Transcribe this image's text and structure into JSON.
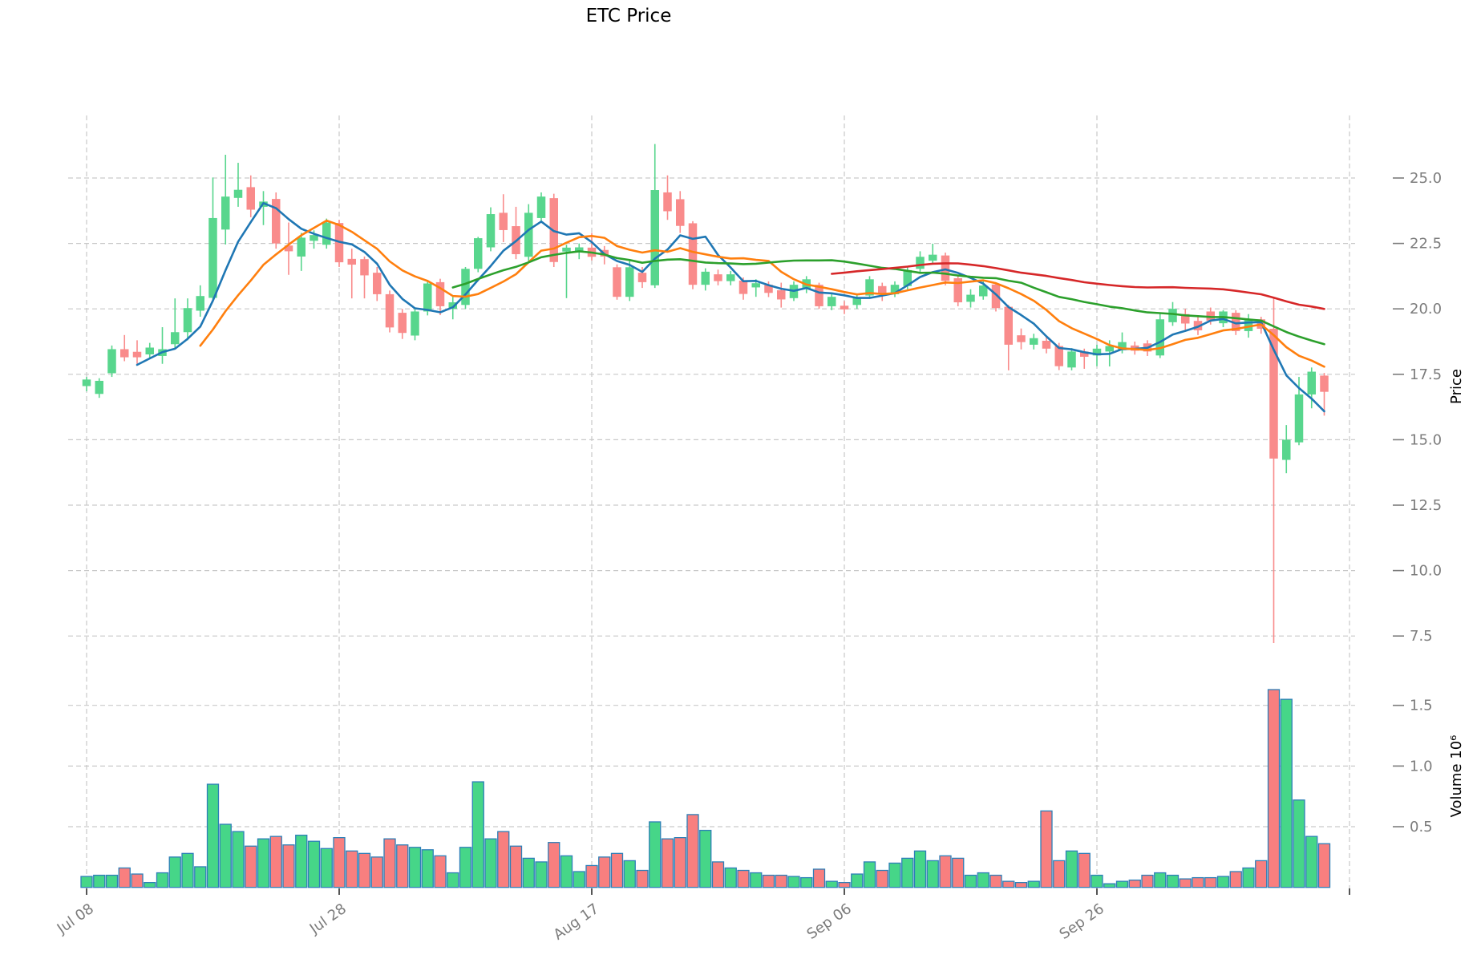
{
  "chart_data": {
    "type": "candlestick",
    "title": "ETC Price",
    "price_axis_label": "Price",
    "volume_axis_label": "Volume  10⁶",
    "legend_position": "none",
    "grid": true,
    "price_ylim": [
      6.9,
      27.4
    ],
    "volume_ylim": [
      0,
      1.85
    ],
    "price_ticks": [
      {
        "v": 25.0,
        "label": "25.0"
      },
      {
        "v": 22.5,
        "label": "22.5"
      },
      {
        "v": 20.0,
        "label": "20.0"
      },
      {
        "v": 17.5,
        "label": "17.5"
      },
      {
        "v": 15.0,
        "label": "15.0"
      },
      {
        "v": 12.5,
        "label": "12.5"
      },
      {
        "v": 10.0,
        "label": "10.0"
      },
      {
        "v": 7.5,
        "label": "7.5"
      }
    ],
    "volume_ticks": [
      {
        "v": 1.5,
        "label": "1.5"
      },
      {
        "v": 1.0,
        "label": "1.0"
      },
      {
        "v": 0.5,
        "label": "0.5"
      }
    ],
    "x_ticks": [
      {
        "index": 0,
        "label": "Jul 08"
      },
      {
        "index": 20,
        "label": "Jul 28"
      },
      {
        "index": 40,
        "label": "Aug 17"
      },
      {
        "index": 60,
        "label": "Sep 06"
      },
      {
        "index": 80,
        "label": "Sep 26"
      },
      {
        "index": 100,
        "label": ""
      }
    ],
    "moving_averages": [
      {
        "window": 5,
        "color": "#1f77b4"
      },
      {
        "window": 10,
        "color": "#ff7f0e"
      },
      {
        "window": 30,
        "color": "#2ca02c"
      },
      {
        "window": 60,
        "color": "#d62728"
      }
    ],
    "colors": {
      "up": "#58d68d",
      "down": "#f98b8b",
      "volume_up": "#46d688",
      "volume_down": "#f87f7f",
      "volume_border": "#2d7fb8",
      "grid": "#c9c9c9",
      "tick_text": "#7c7c7c",
      "axis_title_text": "#000000"
    },
    "candles": [
      {
        "date": "Jul 08",
        "o": 17.05,
        "h": 17.4,
        "l": 16.85,
        "c": 17.3,
        "v": 0.09
      },
      {
        "date": "Jul 09",
        "o": 16.75,
        "h": 17.35,
        "l": 16.6,
        "c": 17.25,
        "v": 0.1
      },
      {
        "date": "Jul 10",
        "o": 17.54,
        "h": 18.6,
        "l": 17.4,
        "c": 18.46,
        "v": 0.1
      },
      {
        "date": "Jul 11",
        "o": 18.46,
        "h": 19.0,
        "l": 18.0,
        "c": 18.15,
        "v": 0.16
      },
      {
        "date": "Jul 12",
        "o": 18.36,
        "h": 18.8,
        "l": 17.9,
        "c": 18.15,
        "v": 0.11
      },
      {
        "date": "Jul 13",
        "o": 18.26,
        "h": 18.7,
        "l": 18.1,
        "c": 18.52,
        "v": 0.04
      },
      {
        "date": "Jul 14",
        "o": 18.2,
        "h": 19.3,
        "l": 17.9,
        "c": 18.46,
        "v": 0.12
      },
      {
        "date": "Jul 15",
        "o": 18.65,
        "h": 20.4,
        "l": 18.5,
        "c": 19.11,
        "v": 0.25
      },
      {
        "date": "Jul 16",
        "o": 19.11,
        "h": 20.4,
        "l": 18.8,
        "c": 20.03,
        "v": 0.28
      },
      {
        "date": "Jul 17",
        "o": 19.93,
        "h": 20.9,
        "l": 19.7,
        "c": 20.49,
        "v": 0.17
      },
      {
        "date": "Jul 18",
        "o": 20.42,
        "h": 25.02,
        "l": 20.3,
        "c": 23.47,
        "v": 0.85
      },
      {
        "date": "Jul 19",
        "o": 23.03,
        "h": 25.89,
        "l": 22.46,
        "c": 24.29,
        "v": 0.52
      },
      {
        "date": "Jul 20",
        "o": 24.24,
        "h": 25.58,
        "l": 23.9,
        "c": 24.55,
        "v": 0.46
      },
      {
        "date": "Jul 21",
        "o": 24.65,
        "h": 25.1,
        "l": 23.5,
        "c": 23.79,
        "v": 0.34
      },
      {
        "date": "Jul 22",
        "o": 23.9,
        "h": 24.5,
        "l": 23.2,
        "c": 24.1,
        "v": 0.4
      },
      {
        "date": "Jul 23",
        "o": 24.2,
        "h": 24.45,
        "l": 22.3,
        "c": 22.5,
        "v": 0.42
      },
      {
        "date": "Jul 24",
        "o": 22.42,
        "h": 23.3,
        "l": 21.3,
        "c": 22.2,
        "v": 0.35
      },
      {
        "date": "Jul 25",
        "o": 22.0,
        "h": 22.9,
        "l": 21.45,
        "c": 22.72,
        "v": 0.43
      },
      {
        "date": "Jul 26",
        "o": 22.6,
        "h": 23.0,
        "l": 22.3,
        "c": 22.82,
        "v": 0.38
      },
      {
        "date": "Jul 27",
        "o": 22.45,
        "h": 23.45,
        "l": 22.3,
        "c": 23.3,
        "v": 0.32
      },
      {
        "date": "Jul 28",
        "o": 23.28,
        "h": 23.4,
        "l": 21.6,
        "c": 21.78,
        "v": 0.41
      },
      {
        "date": "Jul 29",
        "o": 21.91,
        "h": 22.3,
        "l": 20.4,
        "c": 21.69,
        "v": 0.3
      },
      {
        "date": "Jul 30",
        "o": 21.9,
        "h": 22.0,
        "l": 20.4,
        "c": 21.28,
        "v": 0.28
      },
      {
        "date": "Jul 31",
        "o": 21.38,
        "h": 21.6,
        "l": 20.3,
        "c": 20.56,
        "v": 0.25
      },
      {
        "date": "Aug 01",
        "o": 20.56,
        "h": 20.7,
        "l": 19.1,
        "c": 19.29,
        "v": 0.4
      },
      {
        "date": "Aug 02",
        "o": 19.85,
        "h": 20.0,
        "l": 18.85,
        "c": 19.08,
        "v": 0.35
      },
      {
        "date": "Aug 03",
        "o": 18.98,
        "h": 20.0,
        "l": 18.8,
        "c": 19.9,
        "v": 0.33
      },
      {
        "date": "Aug 04",
        "o": 19.9,
        "h": 21.1,
        "l": 19.75,
        "c": 20.97,
        "v": 0.31
      },
      {
        "date": "Aug 05",
        "o": 21.02,
        "h": 21.15,
        "l": 19.76,
        "c": 20.1,
        "v": 0.26
      },
      {
        "date": "Aug 06",
        "o": 20.0,
        "h": 20.45,
        "l": 19.6,
        "c": 20.25,
        "v": 0.12
      },
      {
        "date": "Aug 07",
        "o": 20.15,
        "h": 21.6,
        "l": 20.0,
        "c": 21.53,
        "v": 0.33
      },
      {
        "date": "Aug 08",
        "o": 21.53,
        "h": 22.75,
        "l": 21.4,
        "c": 22.7,
        "v": 0.87
      },
      {
        "date": "Aug 09",
        "o": 22.35,
        "h": 23.88,
        "l": 22.2,
        "c": 23.62,
        "v": 0.4
      },
      {
        "date": "Aug 10",
        "o": 23.67,
        "h": 24.38,
        "l": 22.55,
        "c": 23.01,
        "v": 0.46
      },
      {
        "date": "Aug 11",
        "o": 23.16,
        "h": 23.9,
        "l": 21.9,
        "c": 22.09,
        "v": 0.34
      },
      {
        "date": "Aug 12",
        "o": 21.99,
        "h": 24.0,
        "l": 21.8,
        "c": 23.67,
        "v": 0.24
      },
      {
        "date": "Aug 13",
        "o": 23.47,
        "h": 24.45,
        "l": 23.3,
        "c": 24.29,
        "v": 0.21
      },
      {
        "date": "Aug 14",
        "o": 24.23,
        "h": 24.4,
        "l": 21.6,
        "c": 21.79,
        "v": 0.37
      },
      {
        "date": "Aug 15",
        "o": 22.19,
        "h": 22.45,
        "l": 20.41,
        "c": 22.34,
        "v": 0.26
      },
      {
        "date": "Aug 16",
        "o": 22.2,
        "h": 22.5,
        "l": 21.9,
        "c": 22.35,
        "v": 0.13
      },
      {
        "date": "Aug 17",
        "o": 22.34,
        "h": 22.9,
        "l": 21.85,
        "c": 21.99,
        "v": 0.18
      },
      {
        "date": "Aug 18",
        "o": 22.25,
        "h": 22.4,
        "l": 21.7,
        "c": 22.0,
        "v": 0.25
      },
      {
        "date": "Aug 19",
        "o": 21.59,
        "h": 21.7,
        "l": 20.35,
        "c": 20.46,
        "v": 0.28
      },
      {
        "date": "Aug 20",
        "o": 20.46,
        "h": 21.84,
        "l": 20.3,
        "c": 21.59,
        "v": 0.22
      },
      {
        "date": "Aug 21",
        "o": 21.38,
        "h": 21.6,
        "l": 20.8,
        "c": 21.02,
        "v": 0.14
      },
      {
        "date": "Aug 22",
        "o": 20.9,
        "h": 26.3,
        "l": 20.8,
        "c": 24.54,
        "v": 0.54
      },
      {
        "date": "Aug 23",
        "o": 24.45,
        "h": 25.1,
        "l": 23.4,
        "c": 23.73,
        "v": 0.4
      },
      {
        "date": "Aug 24",
        "o": 24.19,
        "h": 24.5,
        "l": 22.9,
        "c": 23.17,
        "v": 0.41
      },
      {
        "date": "Aug 25",
        "o": 23.27,
        "h": 23.35,
        "l": 20.75,
        "c": 20.92,
        "v": 0.6
      },
      {
        "date": "Aug 26",
        "o": 20.92,
        "h": 21.55,
        "l": 20.7,
        "c": 21.42,
        "v": 0.47
      },
      {
        "date": "Aug 27",
        "o": 21.32,
        "h": 21.5,
        "l": 20.9,
        "c": 21.06,
        "v": 0.21
      },
      {
        "date": "Aug 28",
        "o": 21.06,
        "h": 21.45,
        "l": 20.9,
        "c": 21.32,
        "v": 0.16
      },
      {
        "date": "Aug 29",
        "o": 21.08,
        "h": 21.2,
        "l": 20.35,
        "c": 20.57,
        "v": 0.14
      },
      {
        "date": "Aug 30",
        "o": 20.82,
        "h": 21.13,
        "l": 20.46,
        "c": 20.98,
        "v": 0.12
      },
      {
        "date": "Aug 31",
        "o": 20.92,
        "h": 21.05,
        "l": 20.45,
        "c": 20.61,
        "v": 0.1
      },
      {
        "date": "Sep 01",
        "o": 20.71,
        "h": 21.0,
        "l": 20.05,
        "c": 20.36,
        "v": 0.1
      },
      {
        "date": "Sep 02",
        "o": 20.41,
        "h": 21.05,
        "l": 20.3,
        "c": 20.92,
        "v": 0.09
      },
      {
        "date": "Sep 03",
        "o": 20.77,
        "h": 21.25,
        "l": 20.6,
        "c": 21.13,
        "v": 0.08
      },
      {
        "date": "Sep 04",
        "o": 20.92,
        "h": 21.0,
        "l": 20.0,
        "c": 20.1,
        "v": 0.15
      },
      {
        "date": "Sep 05",
        "o": 20.1,
        "h": 20.6,
        "l": 19.95,
        "c": 20.46,
        "v": 0.05
      },
      {
        "date": "Sep 06",
        "o": 20.12,
        "h": 20.3,
        "l": 19.8,
        "c": 19.98,
        "v": 0.04
      },
      {
        "date": "Sep 07",
        "o": 20.15,
        "h": 20.55,
        "l": 20.0,
        "c": 20.41,
        "v": 0.11
      },
      {
        "date": "Sep 08",
        "o": 20.51,
        "h": 21.25,
        "l": 20.4,
        "c": 21.13,
        "v": 0.21
      },
      {
        "date": "Sep 09",
        "o": 20.87,
        "h": 21.0,
        "l": 20.3,
        "c": 20.56,
        "v": 0.14
      },
      {
        "date": "Sep 10",
        "o": 20.56,
        "h": 21.05,
        "l": 20.45,
        "c": 20.92,
        "v": 0.2
      },
      {
        "date": "Sep 11",
        "o": 20.87,
        "h": 21.6,
        "l": 20.75,
        "c": 21.48,
        "v": 0.24
      },
      {
        "date": "Sep 12",
        "o": 21.53,
        "h": 22.2,
        "l": 21.4,
        "c": 21.99,
        "v": 0.3
      },
      {
        "date": "Sep 13",
        "o": 21.84,
        "h": 22.49,
        "l": 21.75,
        "c": 22.07,
        "v": 0.22
      },
      {
        "date": "Sep 14",
        "o": 22.04,
        "h": 22.15,
        "l": 20.9,
        "c": 21.07,
        "v": 0.26
      },
      {
        "date": "Sep 15",
        "o": 21.17,
        "h": 21.3,
        "l": 20.1,
        "c": 20.25,
        "v": 0.24
      },
      {
        "date": "Sep 16",
        "o": 20.27,
        "h": 20.75,
        "l": 20.05,
        "c": 20.54,
        "v": 0.1
      },
      {
        "date": "Sep 17",
        "o": 20.48,
        "h": 21.05,
        "l": 20.35,
        "c": 20.89,
        "v": 0.12
      },
      {
        "date": "Sep 18",
        "o": 20.93,
        "h": 21.0,
        "l": 19.9,
        "c": 20.03,
        "v": 0.1
      },
      {
        "date": "Sep 19",
        "o": 20.08,
        "h": 20.15,
        "l": 17.65,
        "c": 18.63,
        "v": 0.05
      },
      {
        "date": "Sep 20",
        "o": 18.99,
        "h": 19.25,
        "l": 18.45,
        "c": 18.73,
        "v": 0.04
      },
      {
        "date": "Sep 21",
        "o": 18.63,
        "h": 19.05,
        "l": 18.45,
        "c": 18.88,
        "v": 0.05
      },
      {
        "date": "Sep 22",
        "o": 18.78,
        "h": 18.95,
        "l": 18.3,
        "c": 18.48,
        "v": 0.63
      },
      {
        "date": "Sep 23",
        "o": 18.58,
        "h": 18.7,
        "l": 17.66,
        "c": 17.81,
        "v": 0.22
      },
      {
        "date": "Sep 24",
        "o": 17.76,
        "h": 18.5,
        "l": 17.65,
        "c": 18.37,
        "v": 0.3
      },
      {
        "date": "Sep 25",
        "o": 18.37,
        "h": 18.48,
        "l": 17.71,
        "c": 18.17,
        "v": 0.28
      },
      {
        "date": "Sep 26",
        "o": 18.22,
        "h": 18.63,
        "l": 17.81,
        "c": 18.48,
        "v": 0.1
      },
      {
        "date": "Sep 27",
        "o": 18.37,
        "h": 18.8,
        "l": 17.8,
        "c": 18.58,
        "v": 0.03
      },
      {
        "date": "Sep 28",
        "o": 18.42,
        "h": 19.1,
        "l": 18.3,
        "c": 18.73,
        "v": 0.05
      },
      {
        "date": "Sep 29",
        "o": 18.6,
        "h": 18.75,
        "l": 18.25,
        "c": 18.4,
        "v": 0.06
      },
      {
        "date": "Sep 30",
        "o": 18.68,
        "h": 18.8,
        "l": 18.2,
        "c": 18.37,
        "v": 0.1
      },
      {
        "date": "Oct 01",
        "o": 18.22,
        "h": 19.82,
        "l": 18.12,
        "c": 19.6,
        "v": 0.12
      },
      {
        "date": "Oct 02",
        "o": 19.49,
        "h": 20.26,
        "l": 19.35,
        "c": 20.0,
        "v": 0.1
      },
      {
        "date": "Oct 03",
        "o": 19.8,
        "h": 20.0,
        "l": 19.2,
        "c": 19.44,
        "v": 0.07
      },
      {
        "date": "Oct 04",
        "o": 19.54,
        "h": 19.75,
        "l": 19.0,
        "c": 19.18,
        "v": 0.08
      },
      {
        "date": "Oct 05",
        "o": 19.9,
        "h": 20.05,
        "l": 19.4,
        "c": 19.55,
        "v": 0.08
      },
      {
        "date": "Oct 06",
        "o": 19.45,
        "h": 19.95,
        "l": 19.3,
        "c": 19.9,
        "v": 0.09
      },
      {
        "date": "Oct 07",
        "o": 19.85,
        "h": 19.95,
        "l": 19.0,
        "c": 19.15,
        "v": 0.13
      },
      {
        "date": "Oct 08",
        "o": 19.15,
        "h": 19.8,
        "l": 18.9,
        "c": 19.62,
        "v": 0.16
      },
      {
        "date": "Oct 09",
        "o": 19.6,
        "h": 19.7,
        "l": 19.05,
        "c": 19.24,
        "v": 0.22
      },
      {
        "date": "Oct 10",
        "o": 19.24,
        "h": 20.45,
        "l": 7.23,
        "c": 14.28,
        "v": 1.63
      },
      {
        "date": "Oct 11",
        "o": 14.23,
        "h": 15.56,
        "l": 13.72,
        "c": 15.0,
        "v": 1.55
      },
      {
        "date": "Oct 12",
        "o": 14.9,
        "h": 17.4,
        "l": 14.79,
        "c": 16.73,
        "v": 0.72
      },
      {
        "date": "Oct 13",
        "o": 16.73,
        "h": 17.76,
        "l": 16.2,
        "c": 17.6,
        "v": 0.42
      },
      {
        "date": "Oct 14",
        "o": 17.45,
        "h": 17.55,
        "l": 15.92,
        "c": 16.83,
        "v": 0.36
      }
    ]
  }
}
